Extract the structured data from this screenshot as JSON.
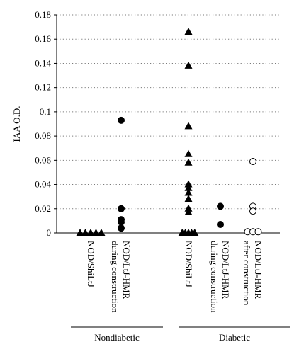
{
  "chart_data": {
    "type": "scatter",
    "ylabel": "IAA O.D.",
    "ylim": [
      0,
      0.18
    ],
    "yticks": [
      "0",
      "0.02",
      "0.04",
      "0.06",
      "0.08",
      "0.1",
      "0.12",
      "0.14",
      "0.16",
      "0.18"
    ],
    "grid": "horizontal-dotted",
    "categories": [
      {
        "label": "NOD/ShiLtJ",
        "label2": ""
      },
      {
        "label": "NOD/LtJ-HMR",
        "label2": "during construction"
      },
      {
        "label": "NOD/ShiLtJ",
        "label2": ""
      },
      {
        "label": "NOD/LtJ-HMR",
        "label2": "during construction"
      },
      {
        "label": "NOD/LtJ-HMR",
        "label2": "after construction"
      }
    ],
    "groups": [
      {
        "label": "Nondiabetic",
        "categories": [
          0,
          1
        ]
      },
      {
        "label": "Diabetic",
        "categories": [
          2,
          3,
          4
        ]
      }
    ],
    "series": [
      {
        "marker": "triangle-filled",
        "category": 0,
        "points": [
          [
            -0.34,
            0
          ],
          [
            -0.17,
            0
          ],
          [
            0,
            0
          ],
          [
            0.17,
            0
          ],
          [
            0.34,
            0
          ]
        ]
      },
      {
        "marker": "circle-filled",
        "category": 1,
        "points": [
          [
            0,
            0.093
          ],
          [
            0,
            0.02
          ],
          [
            0,
            0.011
          ],
          [
            0,
            0.009
          ],
          [
            0,
            0.004
          ]
        ]
      },
      {
        "marker": "triangle-filled",
        "category": 2,
        "points": [
          [
            0,
            0.166
          ],
          [
            0,
            0.138
          ],
          [
            0,
            0.088
          ],
          [
            0,
            0.065
          ],
          [
            0,
            0.058
          ],
          [
            0,
            0.04
          ],
          [
            0,
            0.037
          ],
          [
            0,
            0.033
          ],
          [
            0,
            0.028
          ],
          [
            0,
            0.02
          ],
          [
            0,
            0.017
          ],
          [
            -0.2,
            0
          ],
          [
            -0.1,
            0
          ],
          [
            0,
            0
          ],
          [
            0.1,
            0
          ],
          [
            0.2,
            0
          ]
        ]
      },
      {
        "marker": "circle-filled",
        "category": 3,
        "points": [
          [
            0,
            0.022
          ],
          [
            0,
            0.007
          ]
        ]
      },
      {
        "marker": "circle-open",
        "category": 4,
        "points": [
          [
            0,
            0.059
          ],
          [
            0,
            0.022
          ],
          [
            0,
            0.018
          ],
          [
            -0.17,
            0.001
          ],
          [
            0.0,
            0.001
          ],
          [
            0.17,
            0.001
          ]
        ]
      }
    ],
    "colors": {
      "marker": "#000000",
      "grid": "#7a7a7a",
      "axis": "#000000"
    }
  }
}
